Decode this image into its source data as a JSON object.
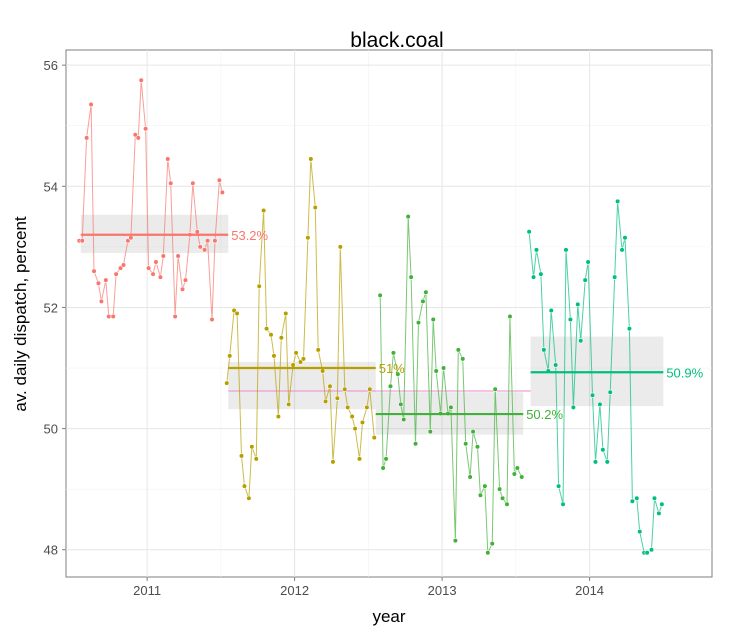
{
  "chart_data": {
    "type": "line",
    "title": "black.coal",
    "xlabel": "year",
    "ylabel": "av. daily dispatch, percent",
    "xlim": [
      2010.45,
      2014.83
    ],
    "ylim": [
      47.55,
      56.25
    ],
    "x_ticks": [
      2011,
      2012,
      2013,
      2014
    ],
    "x_tick_labels": [
      "2011",
      "2012",
      "2013",
      "2014"
    ],
    "y_ticks": [
      48,
      50,
      52,
      54,
      56
    ],
    "y_tick_labels": [
      "48",
      "50",
      "52",
      "54",
      "56"
    ],
    "grid": true,
    "legend": "none",
    "overall_mean": {
      "value": 50.62,
      "x_range": [
        2011.55,
        2013.6
      ],
      "color": "#ee88cc"
    },
    "series": [
      {
        "color": "#f8766d",
        "mean": 53.2,
        "mean_label": "53.2%",
        "mean_x_range": [
          2010.55,
          2011.55
        ],
        "band": [
          52.9,
          53.53
        ],
        "x": [
          2010.54,
          2010.56,
          2010.59,
          2010.62,
          2010.64,
          2010.67,
          2010.69,
          2010.72,
          2010.74,
          2010.77,
          2010.79,
          2010.82,
          2010.84,
          2010.87,
          2010.89,
          2010.92,
          2010.94,
          2010.96,
          2010.99,
          2011.01,
          2011.04,
          2011.06,
          2011.09,
          2011.11,
          2011.14,
          2011.16,
          2011.19,
          2011.21,
          2011.24,
          2011.26,
          2011.29,
          2011.31,
          2011.34,
          2011.36,
          2011.39,
          2011.41,
          2011.44,
          2011.46,
          2011.49,
          2011.51
        ],
        "y": [
          53.1,
          53.1,
          54.8,
          55.35,
          52.6,
          52.4,
          52.1,
          52.45,
          51.85,
          51.85,
          52.55,
          52.65,
          52.7,
          53.1,
          53.15,
          54.85,
          54.8,
          55.75,
          54.95,
          52.65,
          52.55,
          52.75,
          52.5,
          52.85,
          54.45,
          54.05,
          51.85,
          52.85,
          52.3,
          52.45,
          53.2,
          54.05,
          53.25,
          53.0,
          52.95,
          53.1,
          51.8,
          53.1,
          54.1,
          53.9
        ]
      },
      {
        "color": "#b79f00",
        "mean": 51.0,
        "mean_label": "51%",
        "mean_x_range": [
          2011.55,
          2012.55
        ],
        "band": [
          50.32,
          51.1
        ],
        "x": [
          2011.54,
          2011.56,
          2011.59,
          2011.61,
          2011.64,
          2011.66,
          2011.69,
          2011.71,
          2011.74,
          2011.76,
          2011.79,
          2011.81,
          2011.84,
          2011.86,
          2011.89,
          2011.91,
          2011.94,
          2011.96,
          2011.99,
          2012.01,
          2012.04,
          2012.06,
          2012.09,
          2012.11,
          2012.14,
          2012.16,
          2012.19,
          2012.21,
          2012.24,
          2012.26,
          2012.29,
          2012.31,
          2012.34,
          2012.36,
          2012.39,
          2012.41,
          2012.44,
          2012.46,
          2012.49,
          2012.51,
          2012.54
        ],
        "y": [
          50.75,
          51.2,
          51.95,
          51.9,
          49.55,
          49.05,
          48.85,
          49.7,
          49.5,
          52.35,
          53.6,
          51.65,
          51.55,
          51.2,
          50.2,
          51.5,
          51.9,
          50.4,
          51.05,
          51.25,
          51.1,
          51.15,
          53.15,
          54.45,
          53.65,
          51.3,
          50.95,
          50.45,
          50.7,
          49.45,
          50.5,
          53.0,
          50.65,
          50.35,
          50.2,
          50.0,
          49.5,
          50.1,
          50.35,
          50.65,
          49.85
        ]
      },
      {
        "color": "#42b13a",
        "mean": 50.24,
        "mean_label": "50.2%",
        "mean_x_range": [
          2012.55,
          2013.55
        ],
        "band": [
          49.9,
          50.6
        ],
        "x": [
          2012.58,
          2012.6,
          2012.62,
          2012.65,
          2012.67,
          2012.7,
          2012.72,
          2012.74,
          2012.77,
          2012.79,
          2012.82,
          2012.84,
          2012.87,
          2012.89,
          2012.92,
          2012.94,
          2012.96,
          2012.99,
          2013.01,
          2013.04,
          2013.06,
          2013.09,
          2013.11,
          2013.14,
          2013.16,
          2013.19,
          2013.21,
          2013.24,
          2013.26,
          2013.29,
          2013.31,
          2013.34,
          2013.36,
          2013.39,
          2013.41,
          2013.44,
          2013.46,
          2013.49,
          2013.51,
          2013.54
        ],
        "y": [
          52.2,
          49.35,
          49.5,
          50.7,
          51.25,
          50.9,
          50.4,
          50.15,
          53.5,
          52.5,
          49.75,
          51.75,
          52.1,
          52.25,
          49.95,
          51.8,
          50.95,
          50.25,
          51.0,
          50.25,
          50.35,
          48.15,
          51.3,
          51.15,
          49.75,
          49.2,
          49.95,
          49.7,
          48.9,
          49.05,
          47.95,
          48.1,
          50.65,
          49.0,
          48.85,
          48.75,
          51.85,
          49.25,
          49.35,
          49.2
        ]
      },
      {
        "color": "#00bf7d",
        "mean": 50.93,
        "mean_label": "50.9%",
        "mean_x_range": [
          2013.6,
          2014.5
        ],
        "band": [
          50.37,
          51.52
        ],
        "x": [
          2013.59,
          2013.62,
          2013.64,
          2013.67,
          2013.69,
          2013.72,
          2013.74,
          2013.77,
          2013.79,
          2013.82,
          2013.84,
          2013.87,
          2013.89,
          2013.92,
          2013.94,
          2013.97,
          2013.99,
          2014.02,
          2014.04,
          2014.07,
          2014.09,
          2014.12,
          2014.14,
          2014.17,
          2014.19,
          2014.22,
          2014.24,
          2014.27,
          2014.29,
          2014.32,
          2014.34,
          2014.37,
          2014.39,
          2014.42,
          2014.44,
          2014.47,
          2014.49
        ],
        "y": [
          53.25,
          52.5,
          52.95,
          52.55,
          51.3,
          50.95,
          51.95,
          51.05,
          49.05,
          48.75,
          52.95,
          51.8,
          50.35,
          52.05,
          51.45,
          52.45,
          52.75,
          50.55,
          49.45,
          50.4,
          49.65,
          49.45,
          50.6,
          52.5,
          53.75,
          52.95,
          53.15,
          51.65,
          48.8,
          48.85,
          48.3,
          47.95,
          47.95,
          48.0,
          48.85,
          48.6,
          48.75
        ]
      }
    ]
  }
}
